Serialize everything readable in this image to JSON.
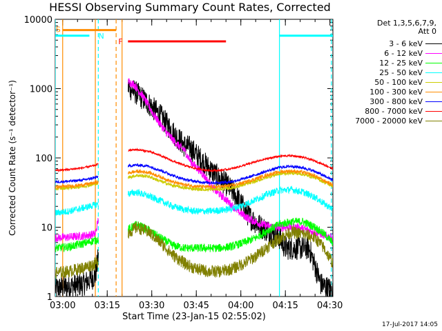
{
  "title": "HESSI Observing Summary Count Rates, Corrected",
  "legend_header": [
    "Det 1,3,5,6,7,9,",
    "Att 0"
  ],
  "timestamp": "17-Jul-2017 14:05",
  "chart_data": {
    "type": "line",
    "title": "HESSI Observing Summary Count Rates, Corrected",
    "xlabel": "Start Time (23-Jan-15 02:55:02)",
    "ylabel": "Corrected Count Rate (s⁻¹ detector⁻¹)",
    "x_unit": "minutes after 02:55:02",
    "xlim": [
      2.5,
      96
    ],
    "ylim": [
      1,
      10000
    ],
    "yscale": "log",
    "x_ticks": [
      {
        "t": 5,
        "label": "03:00"
      },
      {
        "t": 20,
        "label": "03:15"
      },
      {
        "t": 35,
        "label": "03:30"
      },
      {
        "t": 50,
        "label": "03:45"
      },
      {
        "t": 65,
        "label": "04:00"
      },
      {
        "t": 80,
        "label": "04:15"
      },
      {
        "t": 95,
        "label": "04:30"
      }
    ],
    "y_ticks": [
      {
        "v": 1,
        "label": "1"
      },
      {
        "v": 10,
        "label": "10"
      },
      {
        "v": 100,
        "label": "100"
      },
      {
        "v": 1000,
        "label": "1000"
      },
      {
        "v": 10000,
        "label": "10000"
      }
    ],
    "gaps": [
      [
        17,
        27
      ]
    ],
    "series": [
      {
        "name": "3 - 6 keV",
        "color": "#000000",
        "noise": 0.35,
        "points": [
          [
            2.5,
            1.3
          ],
          [
            7,
            1.4
          ],
          [
            12,
            1.5
          ],
          [
            16,
            2.0
          ],
          [
            26.5,
            1100
          ],
          [
            30,
            850
          ],
          [
            34,
            600
          ],
          [
            38,
            400
          ],
          [
            42,
            240
          ],
          [
            46,
            150
          ],
          [
            48,
            140
          ],
          [
            52,
            90
          ],
          [
            56,
            60
          ],
          [
            60,
            42
          ],
          [
            63,
            30
          ],
          [
            65,
            22
          ],
          [
            68,
            14
          ],
          [
            72,
            10
          ],
          [
            76,
            8
          ],
          [
            78,
            7
          ],
          [
            80,
            5
          ],
          [
            84,
            5
          ],
          [
            88,
            5
          ],
          [
            92,
            1.5
          ],
          [
            96,
            1.2
          ]
        ]
      },
      {
        "name": "6 - 12 keV",
        "color": "#ff00ff",
        "noise": 0.12,
        "points": [
          [
            2.5,
            7
          ],
          [
            7,
            7.2
          ],
          [
            12,
            7.5
          ],
          [
            16,
            8
          ],
          [
            26.5,
            1300
          ],
          [
            29,
            1150
          ],
          [
            32,
            780
          ],
          [
            36,
            400
          ],
          [
            40,
            230
          ],
          [
            44,
            150
          ],
          [
            46,
            130
          ],
          [
            48,
            90
          ],
          [
            52,
            60
          ],
          [
            56,
            35
          ],
          [
            60,
            25
          ],
          [
            64,
            17
          ],
          [
            68,
            13
          ],
          [
            72,
            11
          ],
          [
            76,
            10
          ],
          [
            80,
            10
          ],
          [
            84,
            10
          ],
          [
            88,
            9
          ],
          [
            92,
            8
          ],
          [
            96,
            7
          ]
        ]
      },
      {
        "name": "12 - 25 keV",
        "color": "#00ff00",
        "noise": 0.12,
        "points": [
          [
            2.5,
            5
          ],
          [
            7,
            5.2
          ],
          [
            12,
            5.8
          ],
          [
            16,
            6.5
          ],
          [
            26.5,
            9
          ],
          [
            30,
            11
          ],
          [
            34,
            9
          ],
          [
            38,
            7
          ],
          [
            42,
            5.5
          ],
          [
            46,
            5
          ],
          [
            50,
            5
          ],
          [
            54,
            5
          ],
          [
            58,
            5
          ],
          [
            62,
            5.3
          ],
          [
            66,
            6
          ],
          [
            70,
            7
          ],
          [
            74,
            9
          ],
          [
            78,
            11
          ],
          [
            82,
            12
          ],
          [
            86,
            12
          ],
          [
            90,
            10
          ],
          [
            93,
            8
          ],
          [
            96,
            6
          ]
        ]
      },
      {
        "name": "25 - 50 keV",
        "color": "#00ffff",
        "noise": 0.1,
        "points": [
          [
            2.5,
            16
          ],
          [
            7,
            17
          ],
          [
            12,
            19
          ],
          [
            16,
            21
          ],
          [
            26.5,
            30
          ],
          [
            30,
            32
          ],
          [
            34,
            28
          ],
          [
            38,
            24
          ],
          [
            42,
            20
          ],
          [
            46,
            18
          ],
          [
            50,
            17
          ],
          [
            54,
            17
          ],
          [
            58,
            17.5
          ],
          [
            62,
            18.5
          ],
          [
            66,
            21
          ],
          [
            70,
            25
          ],
          [
            74,
            30
          ],
          [
            78,
            34
          ],
          [
            82,
            35
          ],
          [
            86,
            32
          ],
          [
            90,
            27
          ],
          [
            93,
            22
          ],
          [
            96,
            18
          ]
        ]
      },
      {
        "name": "50 - 100 keV",
        "color": "#cccc00",
        "noise": 0.05,
        "points": [
          [
            2.5,
            36
          ],
          [
            7,
            37
          ],
          [
            12,
            39
          ],
          [
            16,
            42
          ],
          [
            26.5,
            52
          ],
          [
            30,
            56
          ],
          [
            34,
            54
          ],
          [
            38,
            46
          ],
          [
            42,
            40
          ],
          [
            46,
            37
          ],
          [
            50,
            35.5
          ],
          [
            54,
            35
          ],
          [
            58,
            35.5
          ],
          [
            62,
            37
          ],
          [
            66,
            41
          ],
          [
            70,
            46
          ],
          [
            74,
            53
          ],
          [
            78,
            59
          ],
          [
            82,
            61
          ],
          [
            86,
            58
          ],
          [
            90,
            52
          ],
          [
            93,
            45
          ],
          [
            96,
            39
          ]
        ]
      },
      {
        "name": "100 - 300 keV",
        "color": "#ff8c00",
        "noise": 0.05,
        "points": [
          [
            2.5,
            38
          ],
          [
            7,
            39
          ],
          [
            12,
            41
          ],
          [
            16,
            44
          ],
          [
            26.5,
            60
          ],
          [
            30,
            64
          ],
          [
            34,
            62
          ],
          [
            38,
            53
          ],
          [
            42,
            45
          ],
          [
            46,
            41
          ],
          [
            50,
            39
          ],
          [
            54,
            38
          ],
          [
            58,
            38.5
          ],
          [
            62,
            40
          ],
          [
            66,
            44
          ],
          [
            70,
            50
          ],
          [
            74,
            57
          ],
          [
            78,
            63
          ],
          [
            82,
            65
          ],
          [
            86,
            62
          ],
          [
            90,
            55
          ],
          [
            93,
            47
          ],
          [
            96,
            41
          ]
        ]
      },
      {
        "name": "300 - 800 keV",
        "color": "#0000ff",
        "noise": 0.04,
        "points": [
          [
            2.5,
            45
          ],
          [
            7,
            46
          ],
          [
            12,
            48
          ],
          [
            16,
            52
          ],
          [
            26.5,
            76
          ],
          [
            30,
            79
          ],
          [
            34,
            76
          ],
          [
            38,
            66
          ],
          [
            42,
            56
          ],
          [
            46,
            49
          ],
          [
            50,
            45.5
          ],
          [
            54,
            44
          ],
          [
            58,
            44
          ],
          [
            62,
            45.5
          ],
          [
            66,
            50
          ],
          [
            70,
            57
          ],
          [
            74,
            65
          ],
          [
            78,
            73
          ],
          [
            82,
            76
          ],
          [
            86,
            72
          ],
          [
            90,
            64
          ],
          [
            93,
            55
          ],
          [
            96,
            48
          ]
        ]
      },
      {
        "name": "800 - 7000 keV",
        "color": "#ff0000",
        "noise": 0.03,
        "points": [
          [
            2.5,
            66
          ],
          [
            7,
            68
          ],
          [
            12,
            72
          ],
          [
            16,
            78
          ],
          [
            26.5,
            128
          ],
          [
            30,
            132
          ],
          [
            34,
            124
          ],
          [
            38,
            108
          ],
          [
            42,
            90
          ],
          [
            46,
            78
          ],
          [
            50,
            70
          ],
          [
            54,
            66
          ],
          [
            58,
            66
          ],
          [
            62,
            70
          ],
          [
            66,
            78
          ],
          [
            70,
            88
          ],
          [
            74,
            98
          ],
          [
            78,
            106
          ],
          [
            82,
            108
          ],
          [
            86,
            102
          ],
          [
            90,
            90
          ],
          [
            93,
            80
          ],
          [
            96,
            70
          ]
        ]
      },
      {
        "name": "7000 - 20000 keV",
        "color": "#808000",
        "noise": 0.18,
        "points": [
          [
            2.5,
            2.2
          ],
          [
            7,
            2.3
          ],
          [
            12,
            2.6
          ],
          [
            16,
            3
          ],
          [
            26.5,
            8
          ],
          [
            30,
            10
          ],
          [
            34,
            8.5
          ],
          [
            38,
            6
          ],
          [
            42,
            4
          ],
          [
            46,
            3
          ],
          [
            50,
            2.5
          ],
          [
            54,
            2.3
          ],
          [
            58,
            2.3
          ],
          [
            62,
            2.5
          ],
          [
            66,
            3
          ],
          [
            70,
            3.8
          ],
          [
            74,
            5.2
          ],
          [
            78,
            7
          ],
          [
            82,
            8.5
          ],
          [
            86,
            8
          ],
          [
            90,
            7
          ],
          [
            93,
            5
          ],
          [
            96,
            3
          ]
        ]
      }
    ],
    "flag_bars": [
      {
        "label": "S",
        "color": "#ff8c00",
        "x0": 5,
        "x1": 23,
        "level": 7000
      },
      {
        "label": "N",
        "color": "#00ffff",
        "x0": 2.5,
        "x1": 14,
        "level": 5800
      },
      {
        "label": "N",
        "color": "#00ffff",
        "x0": 78,
        "x1": 96,
        "level": 5800
      },
      {
        "label": "F",
        "color": "#ff0000",
        "x0": 27,
        "x1": 60,
        "level": 4800
      }
    ],
    "flag_labels": [
      {
        "text": "S",
        "color": "#ff8c00",
        "x": 3.5,
        "level": 7200
      },
      {
        "text": "N",
        "color": "#00ffff",
        "x": 18,
        "level": 5800
      },
      {
        "text": "F",
        "color": "#ff0000",
        "x": 24.5,
        "level": 4800
      }
    ],
    "vlines": [
      {
        "x": 2.5,
        "color": "#00ffff",
        "dash": false
      },
      {
        "x": 5,
        "color": "#ff8c00",
        "dash": false
      },
      {
        "x": 16,
        "color": "#ff8c00",
        "dash": false
      },
      {
        "x": 17,
        "color": "#00ffff",
        "dash": true
      },
      {
        "x": 23,
        "color": "#ff8c00",
        "dash": true
      },
      {
        "x": 25,
        "color": "#ff8c00",
        "dash": false
      },
      {
        "x": 78,
        "color": "#00ffff",
        "dash": false
      },
      {
        "x": 95.5,
        "color": "#00ffff",
        "dash": true
      }
    ]
  }
}
